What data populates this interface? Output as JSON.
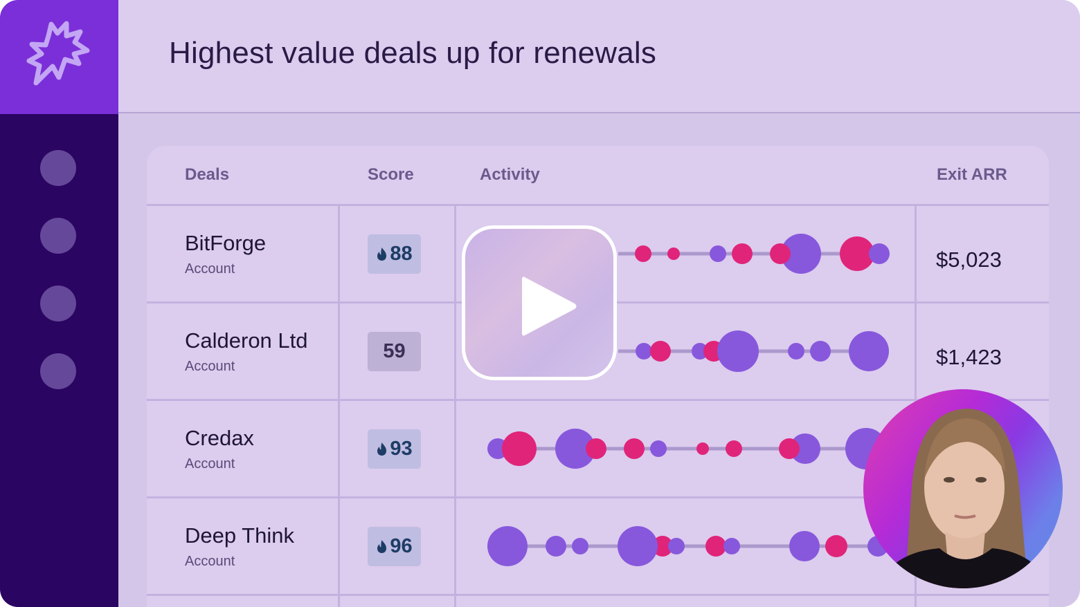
{
  "header": {
    "title": "Highest value deals up for renewals"
  },
  "sidebar": {
    "logo": "sparkle-burst-logo",
    "items": [
      "nav-item",
      "nav-item",
      "nav-item",
      "nav-item"
    ]
  },
  "table": {
    "columns": {
      "deals": "Deals",
      "score": "Score",
      "activity": "Activity",
      "exit_arr": "Exit ARR"
    },
    "rows": [
      {
        "name": "BitForge",
        "type": "Account",
        "score": "88",
        "hot": true,
        "arr": "$5,023"
      },
      {
        "name": "Calderon Ltd",
        "type": "Account",
        "score": "59",
        "hot": false,
        "arr": "$1,423"
      },
      {
        "name": "Credax",
        "type": "Account",
        "score": "93",
        "hot": true,
        "arr": ""
      },
      {
        "name": "Deep Think",
        "type": "Account",
        "score": "96",
        "hot": true,
        "arr": ""
      }
    ]
  },
  "colors": {
    "accent": "#7b2fd8",
    "sidebar": "#2a0561",
    "activity_purple": "#8758dc",
    "activity_pink": "#e0247a"
  },
  "video": {
    "play_icon": "play-icon",
    "presenter": "presenter-avatar"
  }
}
